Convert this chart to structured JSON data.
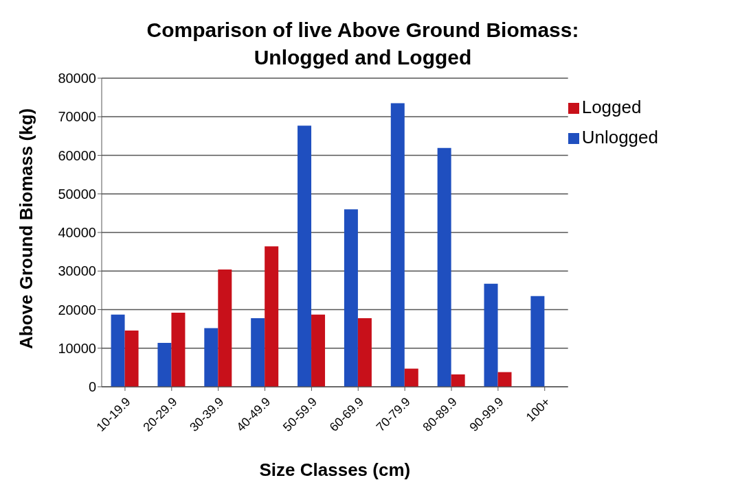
{
  "chart_data": {
    "type": "bar",
    "title": "Comparison of live Above Ground Biomass: Unlogged and Logged",
    "xlabel": "Size Classes (cm)",
    "ylabel": "Above Ground Biomass (kg)",
    "categories": [
      "10-19.9",
      "20-29.9",
      "30-39.9",
      "40-49.9",
      "50-59.9",
      "60-69.9",
      "70-79.9",
      "80-89.9",
      "90-99.9",
      "100+"
    ],
    "series": [
      {
        "name": "Unlogged",
        "color": "#1f4fbf",
        "values": [
          18700,
          11400,
          15200,
          17800,
          67700,
          46000,
          73500,
          61900,
          26700,
          23500
        ]
      },
      {
        "name": "Logged",
        "color": "#c8101a",
        "values": [
          14600,
          19200,
          30400,
          36400,
          18700,
          17800,
          4700,
          3200,
          3800,
          null
        ]
      }
    ],
    "ylim": [
      0,
      80000
    ],
    "yticks": [
      0,
      10000,
      20000,
      30000,
      40000,
      50000,
      60000,
      70000,
      80000
    ],
    "grid": "y",
    "legend": "top right"
  }
}
